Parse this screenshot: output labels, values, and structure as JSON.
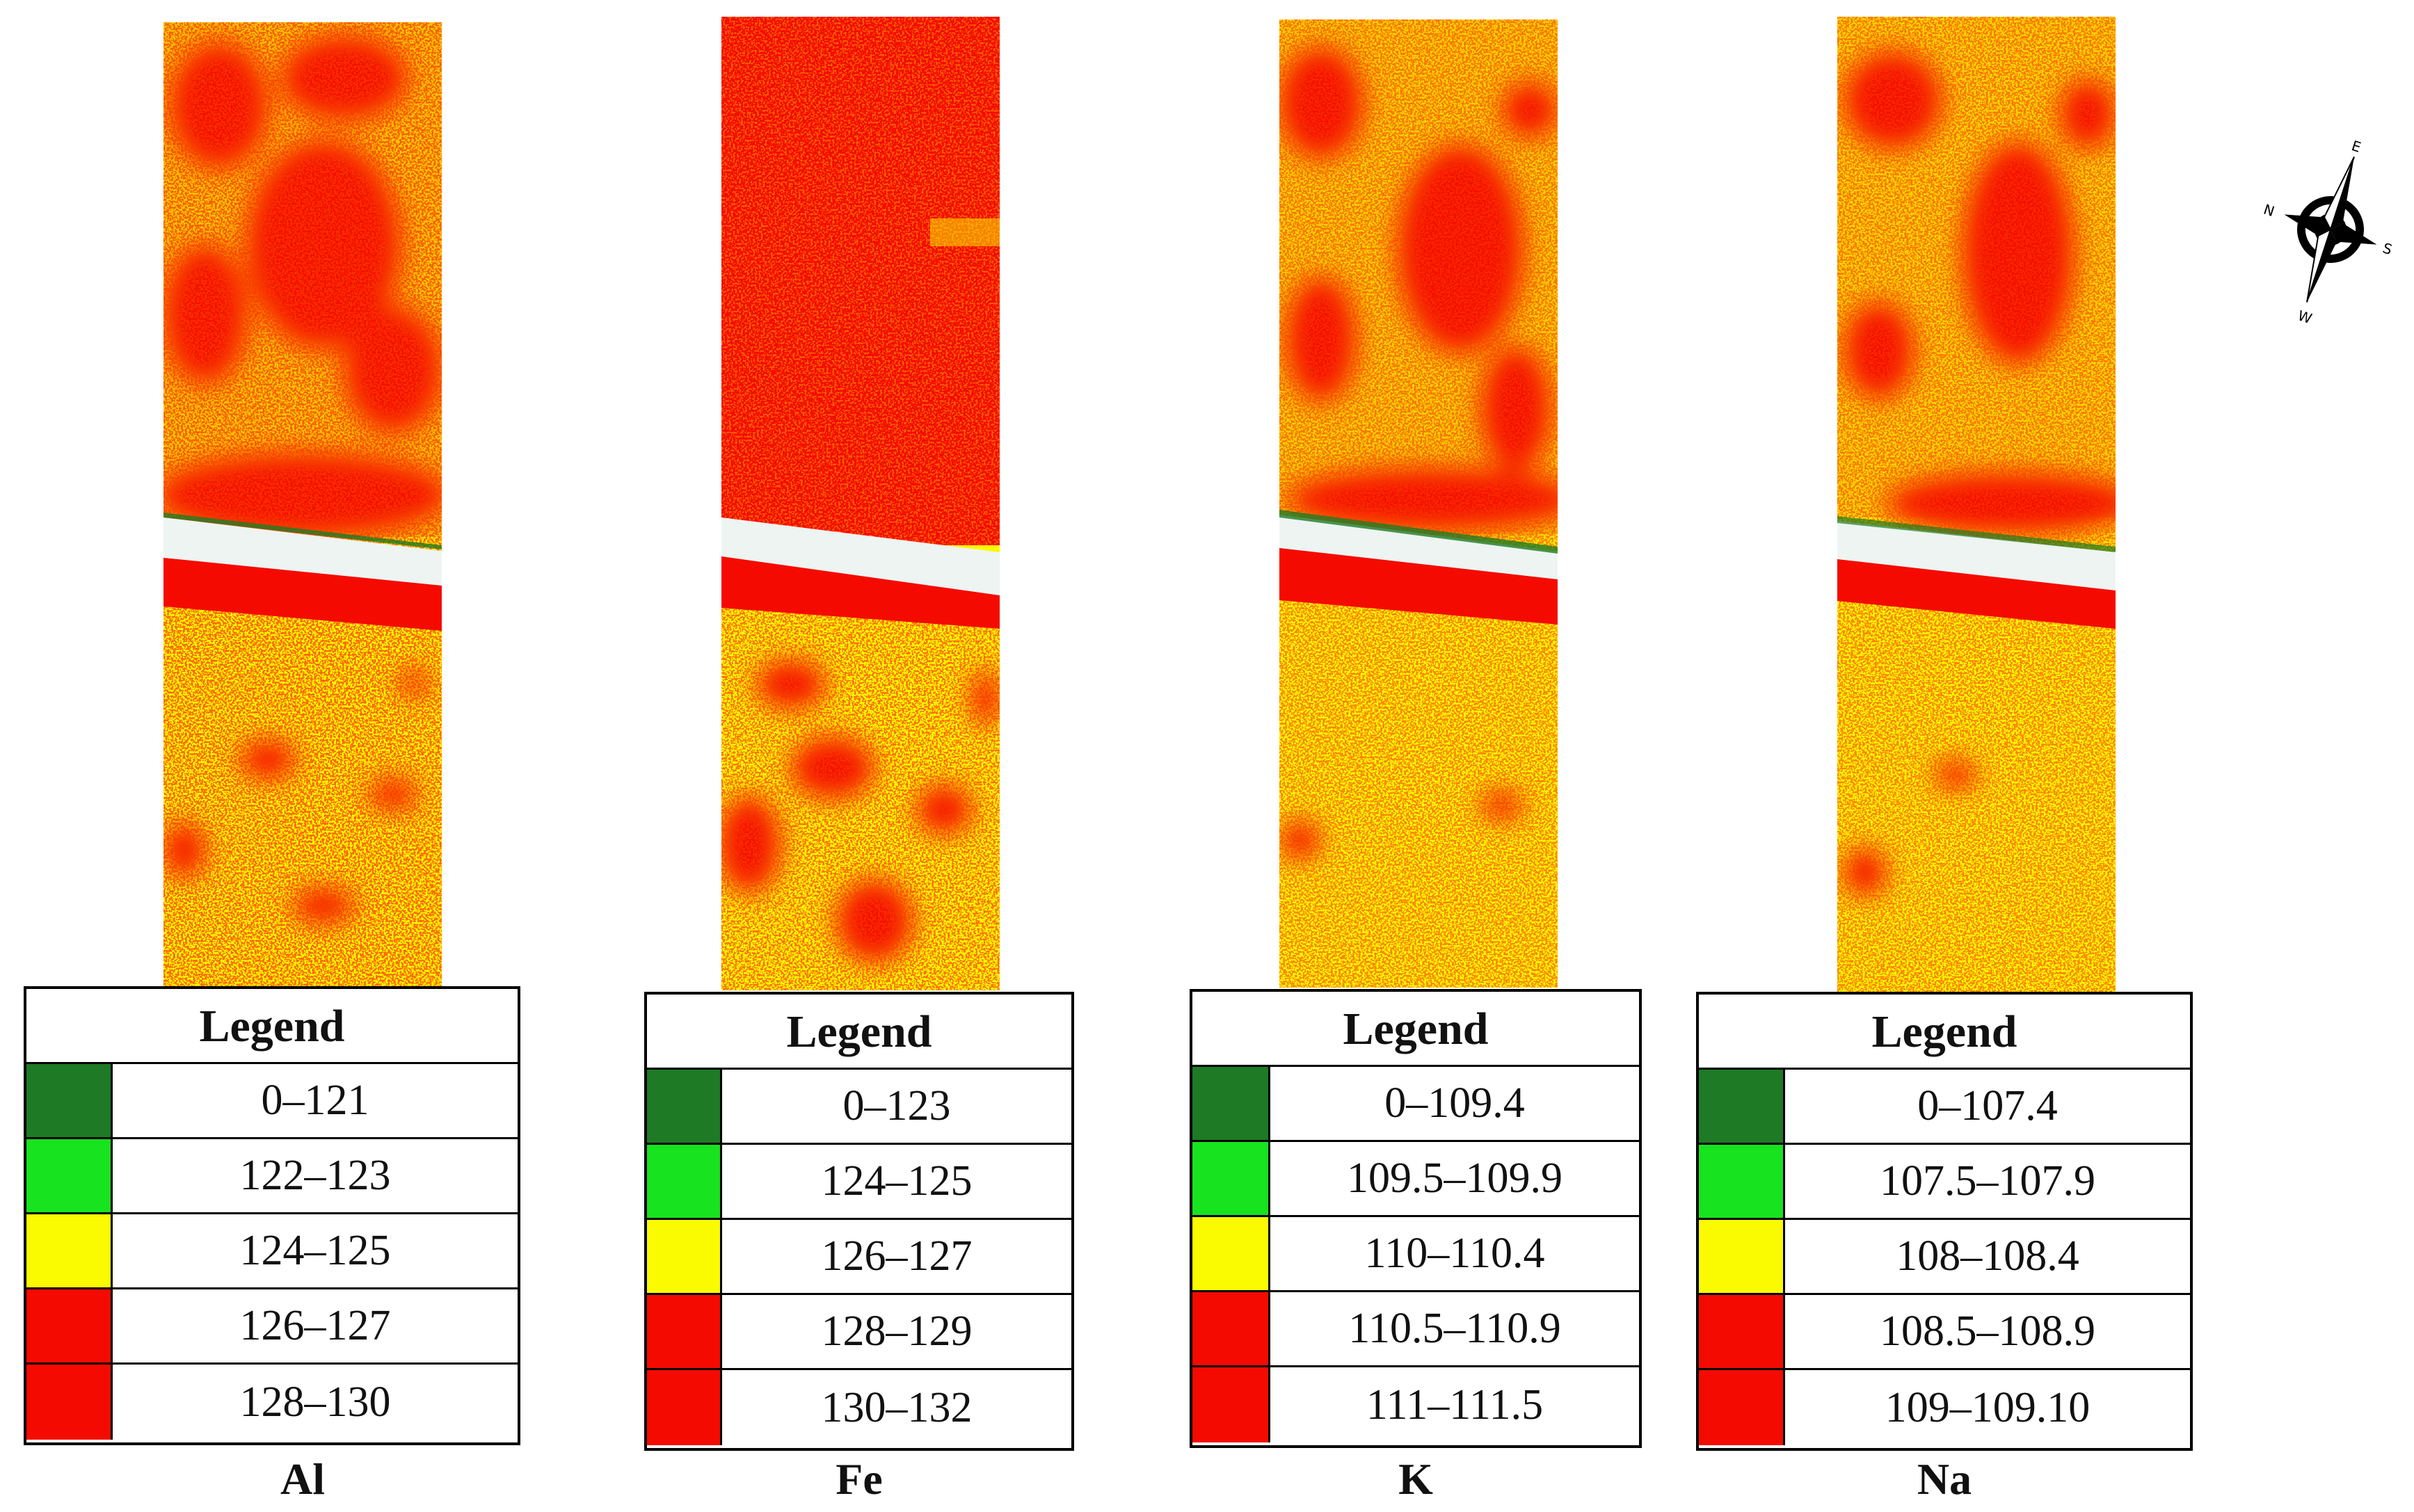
{
  "colors": {
    "dark_green": "#1e7a25",
    "light_green": "#17e31f",
    "yellow": "#fafa00",
    "red": "#f50a00",
    "road": "#eef4f1"
  },
  "compass": {
    "n": "N",
    "e": "E",
    "s": "S",
    "w": "W"
  },
  "panels": [
    {
      "element": "Al",
      "legend_title": "Legend",
      "classes": [
        {
          "range": "0–121",
          "color": "#1e7a25"
        },
        {
          "range": "122–123",
          "color": "#17e31f"
        },
        {
          "range": "124–125",
          "color": "#fafa00"
        },
        {
          "range": "126–127",
          "color": "#f50a00"
        },
        {
          "range": "128–130",
          "color": "#f50a00"
        }
      ]
    },
    {
      "element": "Fe",
      "legend_title": "Legend",
      "classes": [
        {
          "range": "0–123",
          "color": "#1e7a25"
        },
        {
          "range": "124–125",
          "color": "#17e31f"
        },
        {
          "range": "126–127",
          "color": "#fafa00"
        },
        {
          "range": "128–129",
          "color": "#f50a00"
        },
        {
          "range": "130–132",
          "color": "#f50a00"
        }
      ]
    },
    {
      "element": "K",
      "legend_title": "Legend",
      "classes": [
        {
          "range": "0–109.4",
          "color": "#1e7a25"
        },
        {
          "range": "109.5–109.9",
          "color": "#17e31f"
        },
        {
          "range": "110–110.4",
          "color": "#fafa00"
        },
        {
          "range": "110.5–110.9",
          "color": "#f50a00"
        },
        {
          "range": "111–111.5",
          "color": "#f50a00"
        }
      ]
    },
    {
      "element": "Na",
      "legend_title": "Legend",
      "classes": [
        {
          "range": "0–107.4",
          "color": "#1e7a25"
        },
        {
          "range": "107.5–107.9",
          "color": "#17e31f"
        },
        {
          "range": "108–108.4",
          "color": "#fafa00"
        },
        {
          "range": "108.5–108.9",
          "color": "#f50a00"
        },
        {
          "range": "109–109.10",
          "color": "#f50a00"
        }
      ]
    }
  ]
}
